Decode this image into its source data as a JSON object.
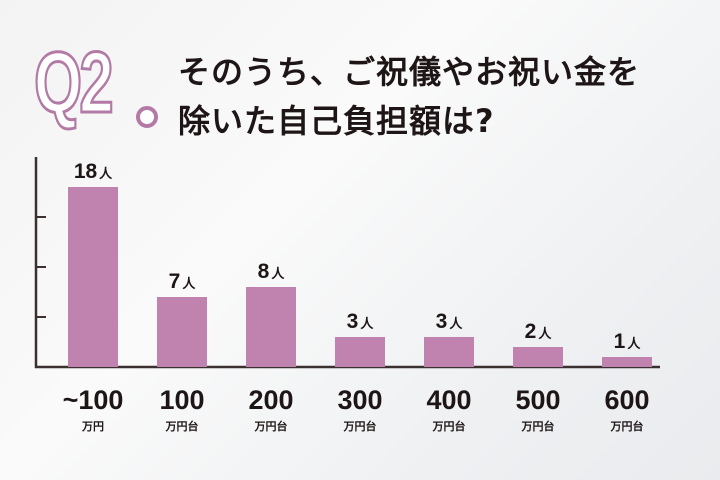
{
  "header": {
    "question_number": "Q2",
    "title_line1": "そのうち、ご祝儀やお祝い金を",
    "title_line2": "除いた自己負担額は?"
  },
  "colors": {
    "bar": "#c083b0",
    "accent": "#b27aa5",
    "axis": "#3a3030"
  },
  "chart_data": {
    "type": "bar",
    "categories": [
      {
        "value": "~100",
        "unit": "万円"
      },
      {
        "value": "100",
        "unit": "万円台"
      },
      {
        "value": "200",
        "unit": "万円台"
      },
      {
        "value": "300",
        "unit": "万円台"
      },
      {
        "value": "400",
        "unit": "万円台"
      },
      {
        "value": "500",
        "unit": "万円台"
      },
      {
        "value": "600",
        "unit": "万円台"
      }
    ],
    "values": [
      18,
      7,
      8,
      3,
      3,
      2,
      1
    ],
    "data_label_suffix": "人",
    "ylim": [
      0,
      21
    ],
    "yticks": [
      5,
      10,
      15
    ],
    "ytick_labels_shown": false,
    "grid": false
  }
}
